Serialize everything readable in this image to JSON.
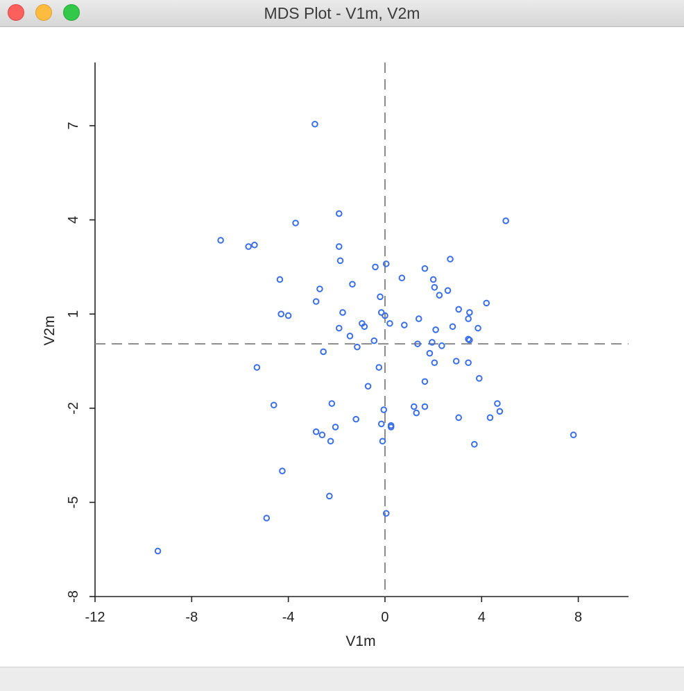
{
  "window": {
    "title": "MDS Plot - V1m, V2m"
  },
  "chart_data": {
    "type": "scatter",
    "xlabel": "V1m",
    "ylabel": "V2m",
    "xlim": [
      -12,
      10
    ],
    "ylim": [
      -8,
      9
    ],
    "x_ticks": [
      -12,
      -8,
      -4,
      0,
      4,
      8
    ],
    "y_ticks": [
      -8,
      -5,
      -2,
      1,
      4,
      7
    ],
    "reference_lines": {
      "x": 0,
      "y": 0.05
    },
    "point_color": "#3b6fe8",
    "points": [
      [
        -2.9,
        7.05
      ],
      [
        -1.9,
        4.2
      ],
      [
        -3.7,
        3.9
      ],
      [
        5.0,
        3.97
      ],
      [
        -6.8,
        3.35
      ],
      [
        -5.65,
        3.15
      ],
      [
        -5.4,
        3.2
      ],
      [
        -1.9,
        3.15
      ],
      [
        -1.85,
        2.7
      ],
      [
        2.7,
        2.75
      ],
      [
        -0.4,
        2.5
      ],
      [
        0.05,
        2.6
      ],
      [
        1.65,
        2.45
      ],
      [
        0.7,
        2.15
      ],
      [
        2.0,
        2.1
      ],
      [
        -4.35,
        2.1
      ],
      [
        -1.35,
        1.95
      ],
      [
        2.05,
        1.85
      ],
      [
        2.6,
        1.75
      ],
      [
        -2.7,
        1.8
      ],
      [
        2.25,
        1.6
      ],
      [
        -0.2,
        1.55
      ],
      [
        -2.85,
        1.4
      ],
      [
        4.2,
        1.35
      ],
      [
        3.05,
        1.15
      ],
      [
        -1.75,
        1.05
      ],
      [
        3.5,
        1.05
      ],
      [
        -0.15,
        1.05
      ],
      [
        -4.3,
        1.0
      ],
      [
        -4.0,
        0.95
      ],
      [
        0.0,
        0.95
      ],
      [
        3.45,
        0.85
      ],
      [
        1.4,
        0.85
      ],
      [
        0.2,
        0.7
      ],
      [
        -0.95,
        0.7
      ],
      [
        -0.85,
        0.6
      ],
      [
        0.8,
        0.65
      ],
      [
        2.8,
        0.6
      ],
      [
        -1.9,
        0.55
      ],
      [
        3.85,
        0.55
      ],
      [
        2.1,
        0.5
      ],
      [
        -1.45,
        0.3
      ],
      [
        3.45,
        0.2
      ],
      [
        3.5,
        0.17
      ],
      [
        -0.45,
        0.15
      ],
      [
        1.35,
        0.05
      ],
      [
        1.95,
        0.1
      ],
      [
        2.35,
        -0.01
      ],
      [
        -1.15,
        -0.05
      ],
      [
        -2.55,
        -0.2
      ],
      [
        1.85,
        -0.25
      ],
      [
        2.05,
        -0.55
      ],
      [
        2.95,
        -0.5
      ],
      [
        3.45,
        -0.55
      ],
      [
        -0.25,
        -0.7
      ],
      [
        -5.3,
        -0.7
      ],
      [
        3.9,
        -1.05
      ],
      [
        1.65,
        -1.15
      ],
      [
        -0.7,
        -1.3
      ],
      [
        -4.6,
        -1.9
      ],
      [
        -2.2,
        -1.85
      ],
      [
        4.65,
        -1.85
      ],
      [
        1.2,
        -1.95
      ],
      [
        1.65,
        -1.95
      ],
      [
        -0.05,
        -2.05
      ],
      [
        4.75,
        -2.1
      ],
      [
        1.3,
        -2.15
      ],
      [
        3.05,
        -2.3
      ],
      [
        4.35,
        -2.3
      ],
      [
        -1.2,
        -2.35
      ],
      [
        -0.15,
        -2.5
      ],
      [
        0.25,
        -2.55
      ],
      [
        0.25,
        -2.6
      ],
      [
        -2.05,
        -2.6
      ],
      [
        -2.85,
        -2.75
      ],
      [
        -2.6,
        -2.85
      ],
      [
        -2.25,
        -3.05
      ],
      [
        -0.1,
        -3.05
      ],
      [
        3.7,
        -3.15
      ],
      [
        7.8,
        -2.85
      ],
      [
        -4.25,
        -4.0
      ],
      [
        -2.3,
        -4.8
      ],
      [
        -4.9,
        -5.5
      ],
      [
        0.05,
        -5.35
      ],
      [
        -9.4,
        -6.55
      ]
    ]
  }
}
